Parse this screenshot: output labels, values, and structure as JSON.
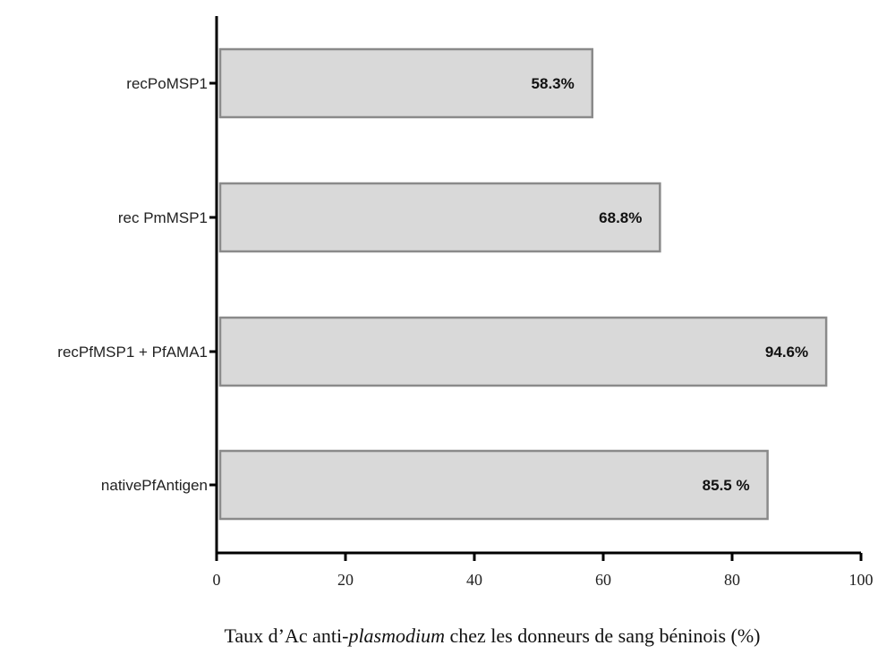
{
  "chart_data": {
    "type": "bar",
    "orientation": "horizontal",
    "categories": [
      "recPoMSP1",
      "rec PmMSP1",
      "recPfMSP1 + PfAMA1",
      "nativePfAntigen"
    ],
    "values": [
      58.3,
      68.8,
      94.6,
      85.5
    ],
    "data_labels": [
      "58.3%",
      "68.8%",
      "94.6%",
      "85.5 %"
    ],
    "xlim": [
      0,
      100
    ],
    "x_ticks": [
      "0",
      "20",
      "40",
      "60",
      "80",
      "100"
    ],
    "xlabel_parts": [
      "Taux d’Ac anti-",
      "plasmodium",
      " chez les donneurs de sang béninois (%)"
    ],
    "grid": false,
    "colors": {
      "bar_fill": "#d9d9d9",
      "bar_stroke": "#8a8a8a",
      "axis": "#000000"
    }
  }
}
